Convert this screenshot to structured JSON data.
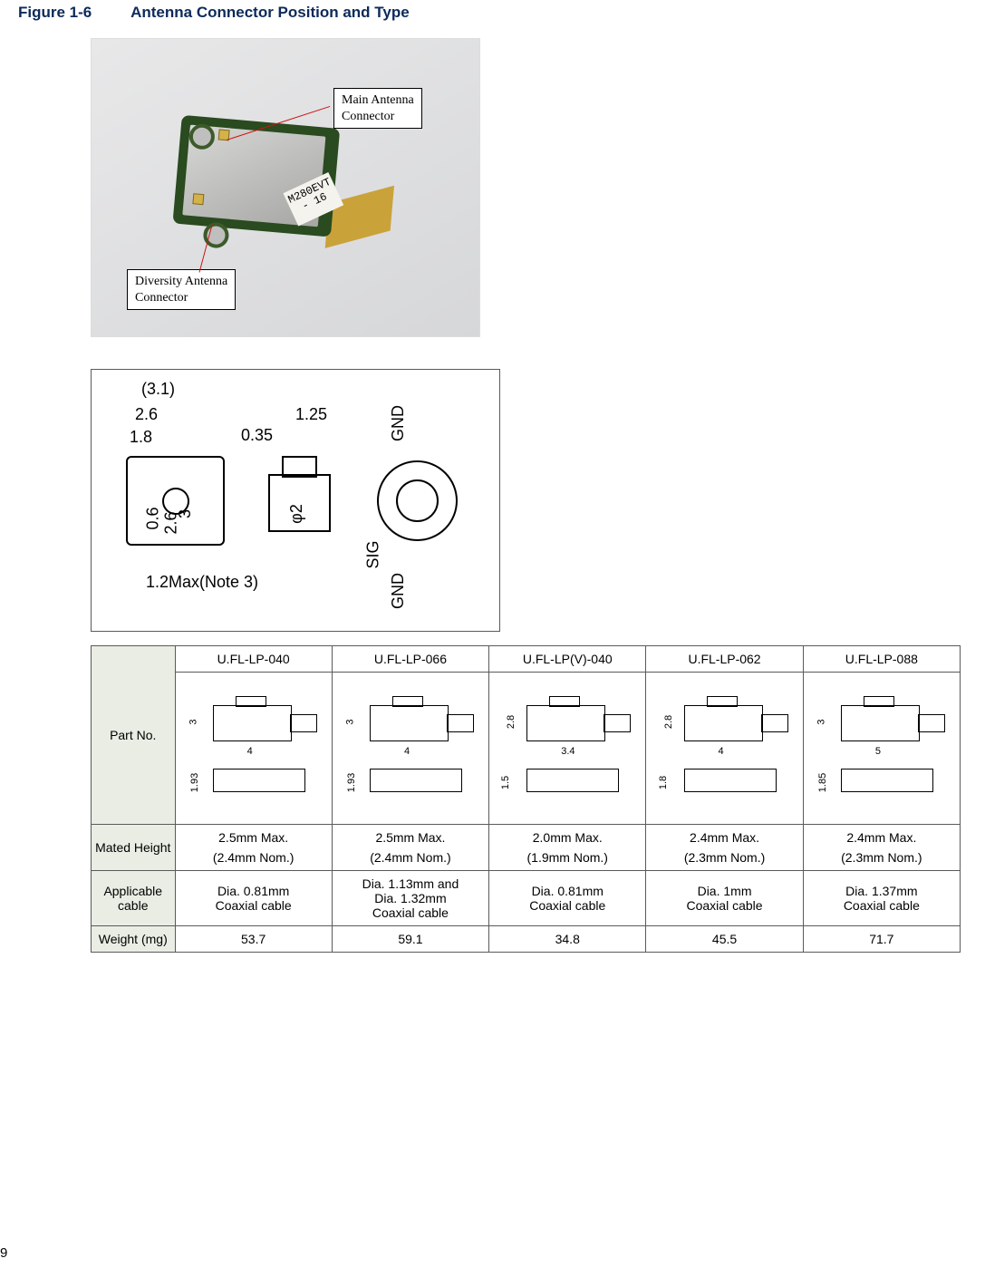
{
  "figure": {
    "label": "Figure 1-6",
    "title": "Antenna Connector Position and Type",
    "title_color": "#0c2a5a"
  },
  "photo": {
    "callout_main": "Main Antenna\nConnector",
    "callout_div": "Diversity Antenna\nConnector",
    "chip_label": "M280EVT\n- 16"
  },
  "dim_drawing": {
    "d_3_1": "(3.1)",
    "d_2_6": "2.6",
    "d_1_8": "1.8",
    "d_0_35": "0.35",
    "d_1_25": "1.25",
    "d_0_6": "0.6",
    "d_v_2_6": "2.6",
    "d_3": "3",
    "d_phi2": "φ2",
    "note": "1.2Max(Note 3)",
    "gnd_top": "GND",
    "gnd_bot": "GND",
    "sig": "SIG"
  },
  "table": {
    "row_headers": [
      "Part No.",
      "Mated Height",
      "Applicable cable",
      "Weight (mg)"
    ],
    "columns": [
      {
        "part": "U.FL-LP-040",
        "dims": {
          "h": "3",
          "w": "4",
          "s": "1.93"
        },
        "mated_max": "2.5mm Max.",
        "mated_nom": "(2.4mm Nom.)",
        "cable": "Dia. 0.81mm\nCoaxial cable",
        "weight": "53.7"
      },
      {
        "part": "U.FL-LP-066",
        "dims": {
          "h": "3",
          "w": "4",
          "s": "1.93"
        },
        "mated_max": "2.5mm Max.",
        "mated_nom": "(2.4mm Nom.)",
        "cable": "Dia. 1.13mm and\nDia. 1.32mm\nCoaxial cable",
        "weight": "59.1"
      },
      {
        "part": "U.FL-LP(V)-040",
        "dims": {
          "h": "2.8",
          "w": "3.4",
          "s": "1.5"
        },
        "mated_max": "2.0mm Max.",
        "mated_nom": "(1.9mm Nom.)",
        "cable": "Dia. 0.81mm\nCoaxial cable",
        "weight": "34.8"
      },
      {
        "part": "U.FL-LP-062",
        "dims": {
          "h": "2.8",
          "w": "4",
          "s": "1.8"
        },
        "mated_max": "2.4mm Max.",
        "mated_nom": "(2.3mm Nom.)",
        "cable": "Dia. 1mm\nCoaxial cable",
        "weight": "45.5"
      },
      {
        "part": "U.FL-LP-088",
        "dims": {
          "h": "3",
          "w": "5",
          "s": "1.85"
        },
        "mated_max": "2.4mm Max.",
        "mated_nom": "(2.3mm Nom.)",
        "cable": "Dia. 1.37mm\nCoaxial cable",
        "weight": "71.7"
      }
    ]
  },
  "page_number": "9"
}
